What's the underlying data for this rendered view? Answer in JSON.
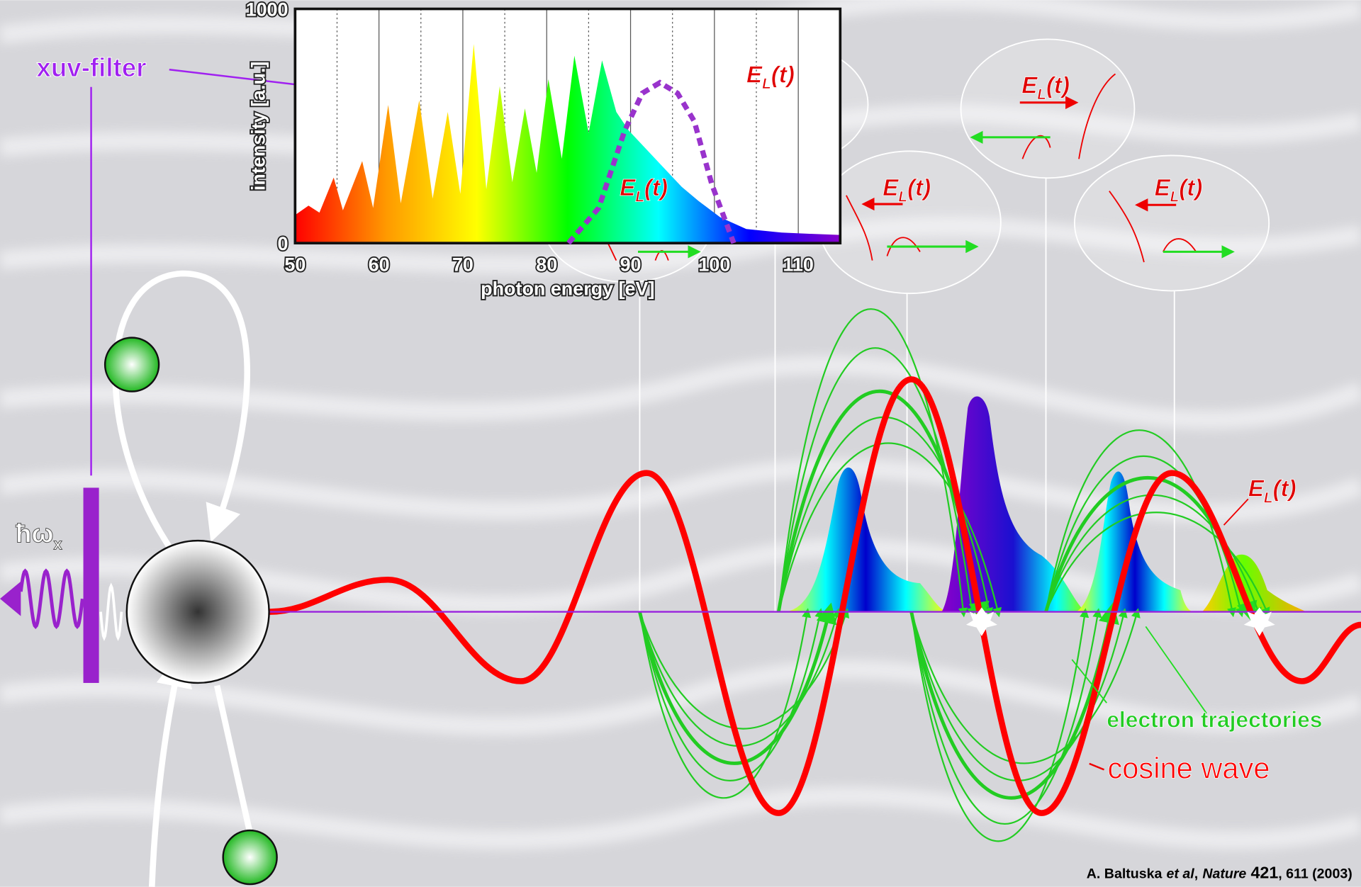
{
  "chart_data": {
    "type": "area",
    "xlabel": "photon energy [eV]",
    "ylabel": "intensity [a.u.]",
    "xlim": [
      50,
      115
    ],
    "xticks": [
      50,
      60,
      70,
      80,
      90,
      100,
      110
    ],
    "ylim": [
      0,
      1000
    ],
    "yticks": [
      0,
      1000
    ],
    "grid": true,
    "series": [
      {
        "x": [
          50.0,
          51.6,
          52.9,
          54.6,
          55.7,
          58.0,
          59.3,
          61.1,
          62.6,
          64.8,
          66.4,
          68.2,
          69.7,
          71.3,
          72.8,
          74.4,
          75.9,
          77.4,
          78.8,
          80.2,
          81.8,
          83.3,
          85.0,
          86.6,
          88.3,
          89.8,
          91.9,
          94.0,
          96.1,
          98.1,
          100.7,
          103.8,
          108.0,
          111.1,
          115.0
        ],
        "values": [
          120,
          160,
          130,
          280,
          140,
          350,
          150,
          590,
          170,
          610,
          190,
          560,
          210,
          850,
          230,
          670,
          260,
          575,
          300,
          700,
          360,
          800,
          470,
          780,
          560,
          480,
          400,
          320,
          240,
          180,
          110,
          60,
          45,
          40,
          35
        ],
        "colors": [
          "#ff0000",
          "#ff9900",
          "#ffff00",
          "#00ff00",
          "#00ffff",
          "#0000ff",
          "#8800cc"
        ]
      },
      {
        "x": [
          82.6,
          86.2,
          89.3,
          91.4,
          93.5,
          95.6,
          97.6,
          99.7,
          102.3
        ],
        "values": [
          0,
          150,
          480,
          640,
          685,
          640,
          520,
          250,
          0
        ],
        "color": "#9933cc",
        "style": "dashed"
      }
    ]
  },
  "labels": {
    "filter": "xuv-filter",
    "photon": "ħω",
    "photon_sub": "x",
    "trajectories": "electron trajectories",
    "wave": "cosine wave"
  },
  "field_labels": [
    {
      "main": "E",
      "sub": "L",
      "arg": "(t)"
    },
    {
      "main": "E",
      "sub": "L",
      "arg": "(t)"
    },
    {
      "main": "E",
      "sub": "L",
      "arg": "(t)"
    },
    {
      "main": "E",
      "sub": "L",
      "arg": "(t)"
    },
    {
      "main": "E",
      "sub": "L",
      "arg": "(t)"
    },
    {
      "main": "E",
      "sub": "L",
      "arg": "(t)"
    }
  ],
  "citation": {
    "authors": "A. Baltuska",
    "etal": "et al",
    "sep": ",",
    "journal": "Nature",
    "volume": "421",
    "rest": ", 611 (2003)"
  }
}
